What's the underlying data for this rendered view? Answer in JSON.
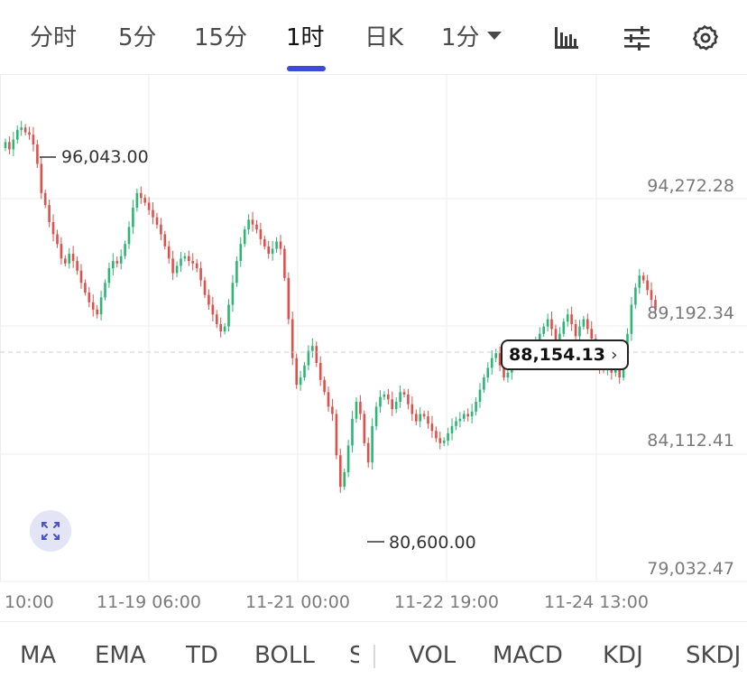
{
  "timeframe_tabs": [
    {
      "label": "分时",
      "active": false
    },
    {
      "label": "5分",
      "active": false
    },
    {
      "label": "15分",
      "active": false
    },
    {
      "label": "1时",
      "active": true
    },
    {
      "label": "日K",
      "active": false
    },
    {
      "label": "1分",
      "active": false,
      "dropdown": true
    }
  ],
  "toolbar_icons": [
    "bar-chart-icon",
    "sliders-icon",
    "settings-gear-icon"
  ],
  "current_price": "88,154.13",
  "chart_data": {
    "type": "candlestick",
    "interval": "1H",
    "y_axis_labels": [
      "94,272.28",
      "89,192.34",
      "84,112.41",
      "79,032.47"
    ],
    "x_axis_labels": [
      "10:00",
      "11-19 06:00",
      "11-21 00:00",
      "11-22 19:00",
      "11-24 13:00"
    ],
    "high_marker": "96,043.00",
    "low_marker": "80,600.00",
    "ylim": [
      77300,
      98200
    ],
    "grid": true,
    "up_color": "#2bb673",
    "down_color": "#e0504a",
    "close_path": [
      95400,
      95100,
      95500,
      95900,
      96000,
      95800,
      95700,
      95300,
      94500,
      93300,
      92800,
      92100,
      91600,
      91200,
      90600,
      90400,
      90800,
      90500,
      90100,
      89600,
      89200,
      88800,
      88500,
      88300,
      89000,
      89600,
      90200,
      90500,
      90400,
      90700,
      91200,
      91900,
      92700,
      93300,
      93100,
      92900,
      92600,
      92300,
      92000,
      91600,
      91100,
      90600,
      90000,
      90300,
      90600,
      90700,
      90500,
      90400,
      90200,
      89700,
      89100,
      88700,
      88300,
      87900,
      87600,
      87800,
      88700,
      89600,
      90500,
      91200,
      91800,
      92200,
      92000,
      91800,
      91400,
      91100,
      90800,
      91000,
      91300,
      91000,
      89800,
      88100,
      86500,
      85400,
      85700,
      86200,
      86800,
      87000,
      86300,
      85600,
      85100,
      84500,
      84200,
      82500,
      81200,
      81800,
      82900,
      84000,
      84700,
      84200,
      83000,
      82200,
      83700,
      84500,
      84900,
      85000,
      84800,
      84400,
      84700,
      85100,
      85000,
      84600,
      84200,
      83900,
      84200,
      84100,
      83800,
      83500,
      83200,
      83000,
      83100,
      83400,
      83700,
      83900,
      84000,
      84200,
      84100,
      84300,
      84700,
      85200,
      85700,
      86100,
      86500,
      86700,
      86200,
      85700,
      85900,
      86200,
      86500,
      86800,
      86700,
      86600,
      86900,
      87200,
      87500,
      87800,
      88100,
      87700,
      87200,
      87500,
      88000,
      88300,
      87900,
      87400,
      87800,
      88100,
      87700,
      87300,
      86800,
      86100,
      86000,
      86300,
      85900,
      86200,
      85700,
      86400,
      87500,
      88700,
      89400,
      89900,
      89700,
      89300,
      88900,
      88500
    ]
  },
  "indicators": {
    "main": [
      "MA",
      "EMA",
      "TD",
      "BOLL",
      "SAR"
    ],
    "sub": [
      "VOL",
      "MACD",
      "KDJ",
      "SKDJ"
    ]
  }
}
